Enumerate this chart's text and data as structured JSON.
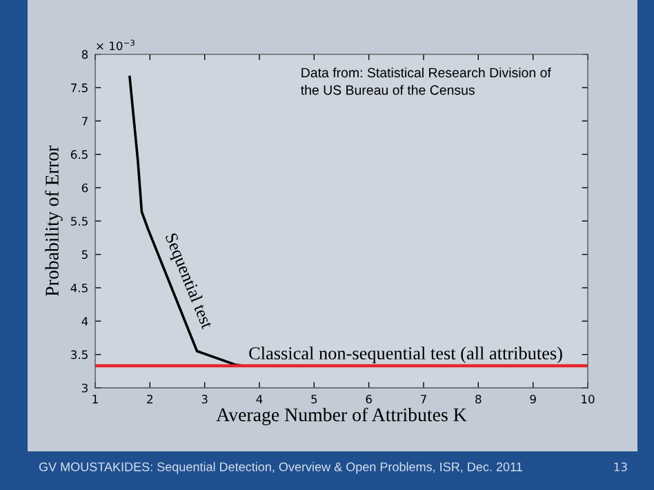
{
  "chart_data": {
    "type": "line",
    "xlabel": "Average Number of Attributes K",
    "ylabel": "Probability of Error",
    "x": [
      1.63,
      1.78,
      1.85,
      1.97,
      2.86,
      3.55,
      3.7
    ],
    "series": [
      {
        "name": "Sequential test",
        "color": "#000000",
        "values": [
          7.66,
          6.4,
          5.64,
          5.37,
          3.55,
          3.35,
          3.33
        ]
      }
    ],
    "xlim": [
      1,
      10
    ],
    "xticks": [
      1,
      2,
      3,
      4,
      5,
      6,
      7,
      8,
      9,
      10
    ],
    "ylim": [
      3,
      8
    ],
    "yticks": [
      3,
      3.5,
      4,
      4.5,
      5,
      5.5,
      6,
      6.5,
      7,
      7.5,
      8
    ],
    "ref_lines": [
      {
        "axis": "y",
        "value": 3.33,
        "label": "Classical non-sequential test (all attributes)",
        "color": "#e8242a"
      }
    ],
    "grid": false,
    "legend": false,
    "annotations": [
      "× 10$^{−3}$",
      "Data from: Statistical Research Division of\nthe US Bureau of the Census",
      "GV MOUSTAKIDES: Sequential Detection, Overview & Open Problems, ISR, Dec. 2011",
      "13"
    ]
  }
}
